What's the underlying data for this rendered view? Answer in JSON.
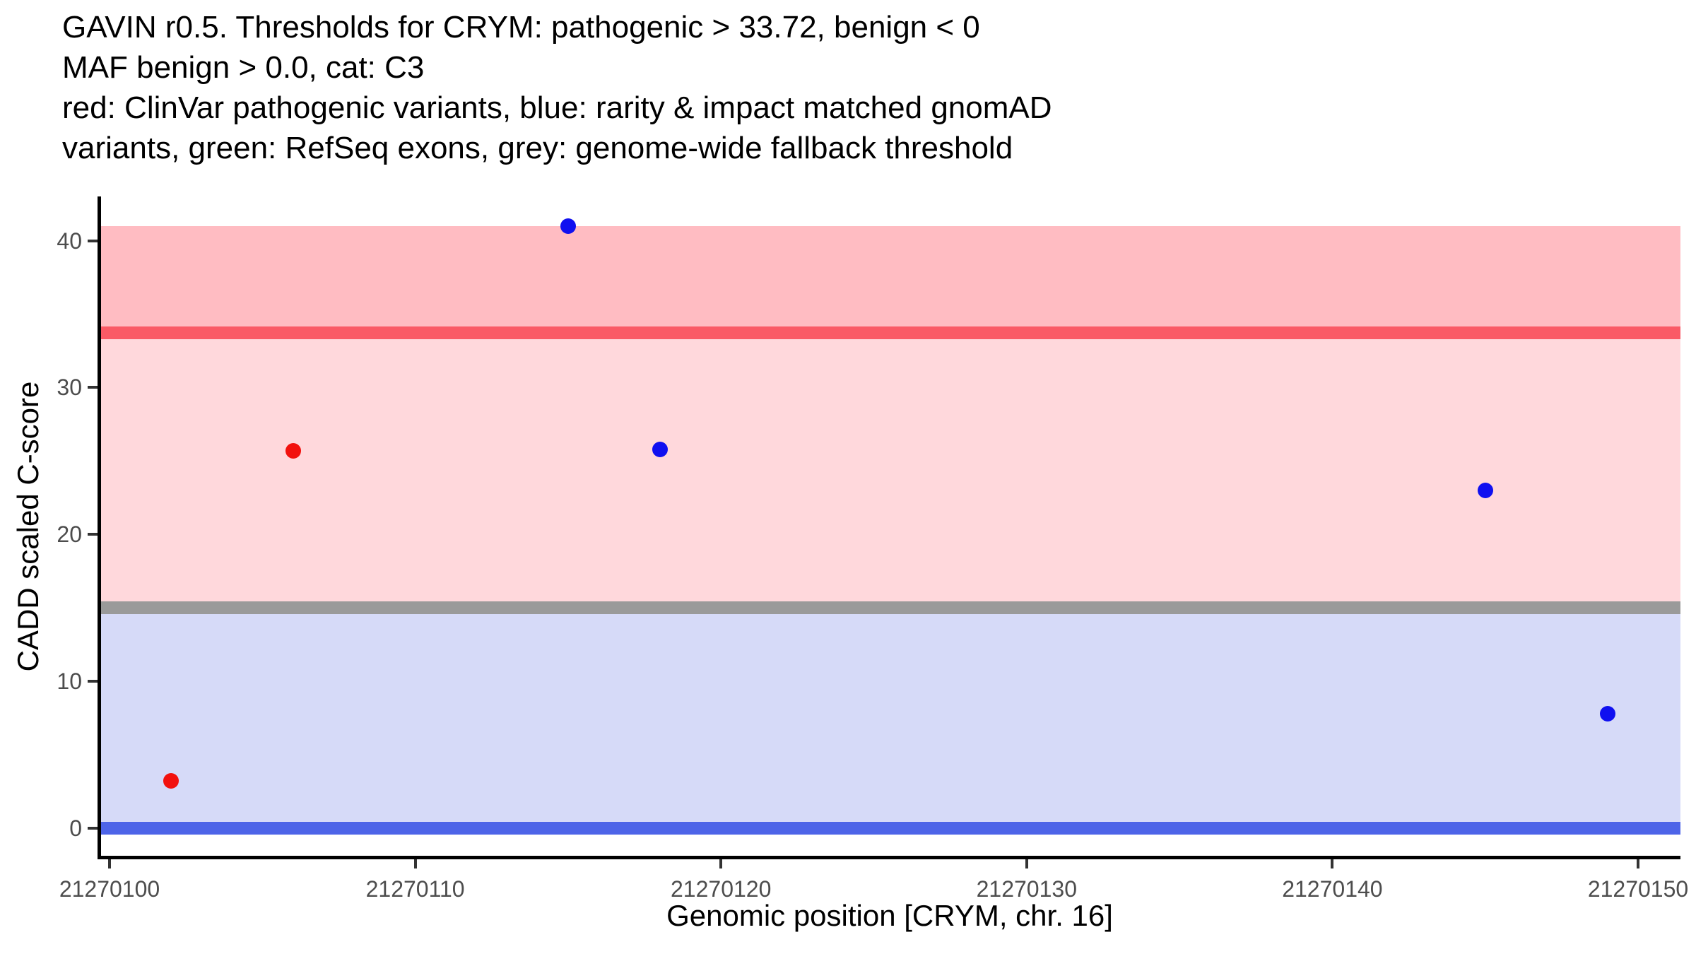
{
  "chart_data": {
    "type": "scatter",
    "title_lines": [
      "GAVIN r0.5. Thresholds for CRYM: pathogenic > 33.72, benign < 0",
      "MAF benign > 0.0, cat: C3",
      "red: ClinVar pathogenic variants, blue: rarity & impact matched gnomAD",
      "variants, green: RefSeq exons, grey: genome-wide fallback threshold"
    ],
    "xlabel": "Genomic position [CRYM, chr. 16]",
    "ylabel": "CADD scaled C-score",
    "xlim": [
      21270099.7,
      21270151.4
    ],
    "ylim": [
      -2,
      43
    ],
    "grid": false,
    "legend": "none",
    "x_ticks": {
      "values": [
        21270100,
        21270110,
        21270120,
        21270130,
        21270140,
        21270150
      ],
      "labels": [
        "21270100",
        "21270110",
        "21270120",
        "21270130",
        "21270140",
        "21270150"
      ]
    },
    "y_ticks": {
      "values": [
        0,
        10,
        20,
        30,
        40
      ],
      "labels": [
        "0",
        "10",
        "20",
        "30",
        "40"
      ]
    },
    "bands": [
      {
        "key": "above-pathogenic-threshold",
        "from": 33.72,
        "to": 41,
        "color": "#ffbcc2"
      },
      {
        "key": "between-thresholds",
        "from": 15,
        "to": 33.72,
        "color": "#ffd8dc"
      },
      {
        "key": "below-fallback-threshold",
        "from": 0,
        "to": 15,
        "color": "#d6daf8"
      }
    ],
    "hlines": [
      {
        "key": "pathogenic-threshold",
        "y": 33.72,
        "color": "#fa5a66",
        "thickness_px": 18
      },
      {
        "key": "genome-wide-fallback-threshold",
        "y": 15,
        "color": "#9a9a9a",
        "thickness_px": 18
      },
      {
        "key": "benign-threshold",
        "y": 0,
        "color": "#4d64e8",
        "thickness_px": 18
      }
    ],
    "series": [
      {
        "key": "clinvar-pathogenic",
        "name": "ClinVar pathogenic variants",
        "color": "#f2110e",
        "points": [
          {
            "x": 21270102,
            "y": 3.2
          },
          {
            "x": 21270106,
            "y": 25.7
          }
        ]
      },
      {
        "key": "gnomad-matched",
        "name": "rarity & impact matched gnomAD variants",
        "color": "#1010f0",
        "points": [
          {
            "x": 21270115,
            "y": 41
          },
          {
            "x": 21270118,
            "y": 25.8
          },
          {
            "x": 21270145,
            "y": 23
          },
          {
            "x": 21270149,
            "y": 7.8
          }
        ]
      }
    ]
  },
  "colors": {
    "axis_line": "#000000",
    "tick_mark": "#333333",
    "tick_label": "#4d4d4d",
    "text": "#000000",
    "background": "#ffffff"
  }
}
